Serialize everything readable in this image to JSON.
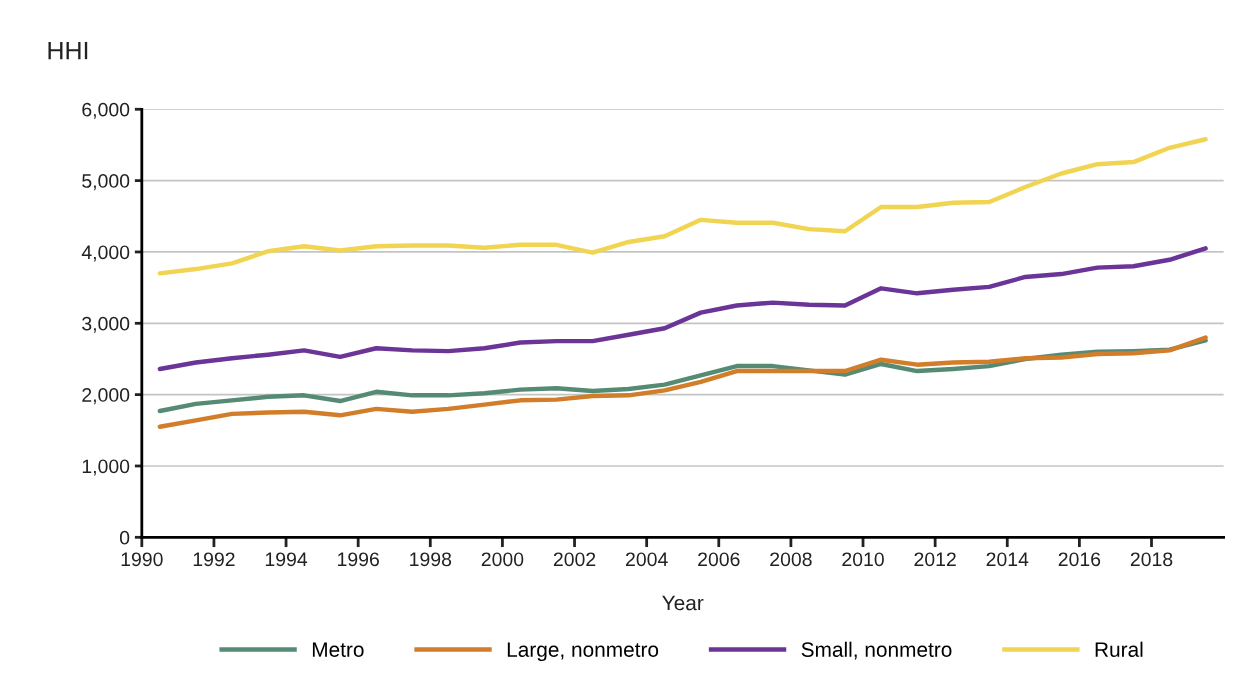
{
  "chart_data": {
    "type": "line",
    "ylabel": "HHI",
    "xlabel": "Year",
    "x": [
      1990.5,
      1991.5,
      1992.5,
      1993.5,
      1994.5,
      1995.5,
      1996.5,
      1997.5,
      1998.5,
      1999.5,
      2000.5,
      2001.5,
      2002.5,
      2003.5,
      2004.5,
      2005.5,
      2006.5,
      2007.5,
      2008.5,
      2009.5,
      2010.5,
      2011.5,
      2012.5,
      2013.5,
      2014.5,
      2015.5,
      2016.5,
      2017.5,
      2018.5,
      2019.5
    ],
    "series": [
      {
        "name": "Metro",
        "color": "#558b74",
        "values": [
          1770,
          1870,
          1920,
          1970,
          1990,
          1910,
          2040,
          1990,
          1990,
          2020,
          2070,
          2090,
          2050,
          2080,
          2140,
          2270,
          2400,
          2400,
          2340,
          2280,
          2430,
          2330,
          2360,
          2400,
          2500,
          2560,
          2600,
          2610,
          2630,
          2760
        ]
      },
      {
        "name": "Large, nonmetro",
        "color": "#d27d2a",
        "values": [
          1550,
          1640,
          1730,
          1750,
          1760,
          1710,
          1800,
          1760,
          1800,
          1860,
          1920,
          1930,
          1980,
          1990,
          2060,
          2180,
          2330,
          2330,
          2330,
          2330,
          2490,
          2420,
          2450,
          2460,
          2510,
          2520,
          2570,
          2580,
          2620,
          2800
        ]
      },
      {
        "name": "Small, nonmetro",
        "color": "#6b3598",
        "values": [
          2360,
          2450,
          2510,
          2560,
          2620,
          2530,
          2650,
          2620,
          2610,
          2650,
          2730,
          2750,
          2750,
          2840,
          2930,
          3150,
          3250,
          3290,
          3260,
          3250,
          3490,
          3420,
          3470,
          3510,
          3650,
          3690,
          3780,
          3800,
          3890,
          4050
        ]
      },
      {
        "name": "Rural",
        "color": "#f0d452",
        "values": [
          3700,
          3760,
          3840,
          4010,
          4080,
          4020,
          4080,
          4090,
          4090,
          4060,
          4100,
          4100,
          3990,
          4140,
          4220,
          4450,
          4410,
          4410,
          4320,
          4290,
          4630,
          4630,
          4690,
          4700,
          4910,
          5100,
          5230,
          5260,
          5460,
          5580
        ]
      }
    ],
    "xlim": [
      1990,
      2020
    ],
    "xticks": [
      1990,
      1992,
      1994,
      1996,
      1998,
      2000,
      2002,
      2004,
      2006,
      2008,
      2010,
      2012,
      2014,
      2016,
      2018
    ],
    "ylim": [
      0,
      6000
    ],
    "yticks": [
      {
        "value": 0,
        "label": "0"
      },
      {
        "value": 1000,
        "label": "1,000"
      },
      {
        "value": 2000,
        "label": "2,000"
      },
      {
        "value": 3000,
        "label": "3,000"
      },
      {
        "value": 4000,
        "label": "4,000"
      },
      {
        "value": 5000,
        "label": "5,000"
      },
      {
        "value": 6000,
        "label": "6,000"
      }
    ],
    "grid": "y",
    "legend": "bottom",
    "marker": "none",
    "line_style": "solid"
  }
}
